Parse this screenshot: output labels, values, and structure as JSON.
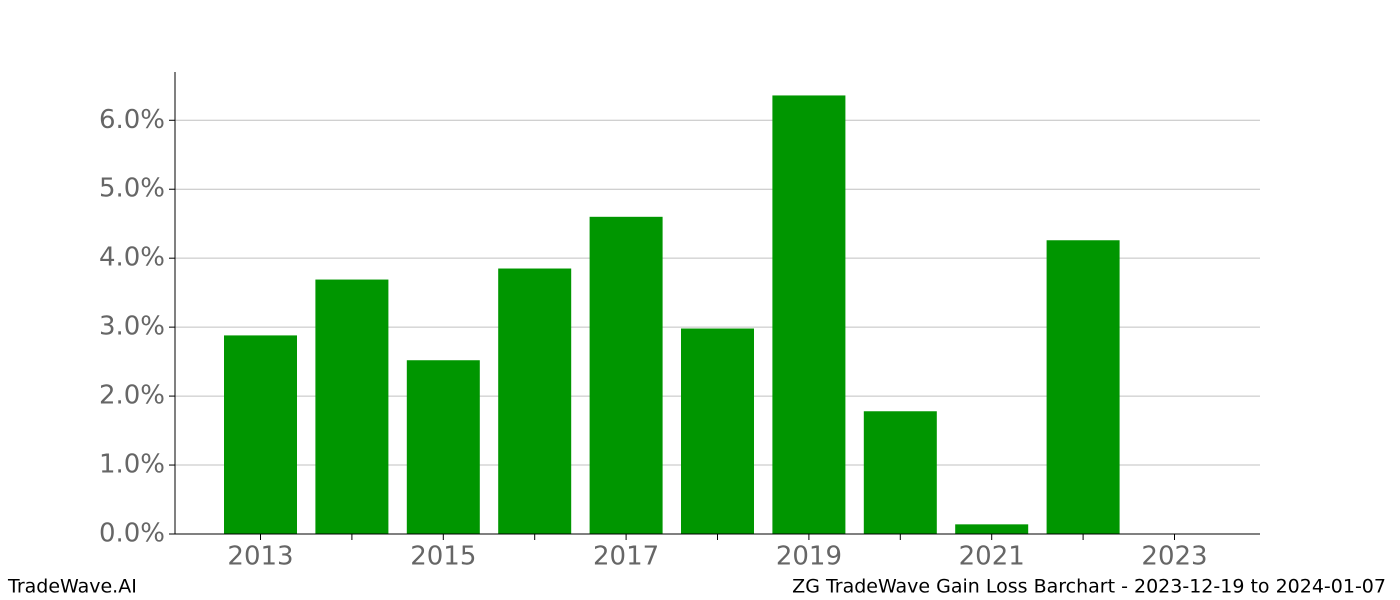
{
  "chart_data": {
    "type": "bar",
    "categories": [
      "2013",
      null,
      "2015",
      null,
      "2017",
      null,
      "2019",
      null,
      "2021",
      null,
      "2023"
    ],
    "values": [
      2.88,
      3.69,
      2.52,
      3.85,
      4.6,
      2.98,
      6.36,
      1.78,
      0.14,
      4.26,
      0
    ],
    "color": "#009600",
    "ylim": [
      0,
      6.7
    ],
    "yticks": [
      {
        "value": 0,
        "label": "0.0%"
      },
      {
        "value": 1,
        "label": "1.0%"
      },
      {
        "value": 2,
        "label": "2.0%"
      },
      {
        "value": 3,
        "label": "3.0%"
      },
      {
        "value": 4,
        "label": "4.0%"
      },
      {
        "value": 5,
        "label": "5.0%"
      },
      {
        "value": 6,
        "label": "6.0%"
      }
    ],
    "grid": true
  },
  "footer": {
    "left": "TradeWave.AI",
    "right": "ZG TradeWave Gain Loss Barchart - 2023-12-19 to 2024-01-07"
  }
}
